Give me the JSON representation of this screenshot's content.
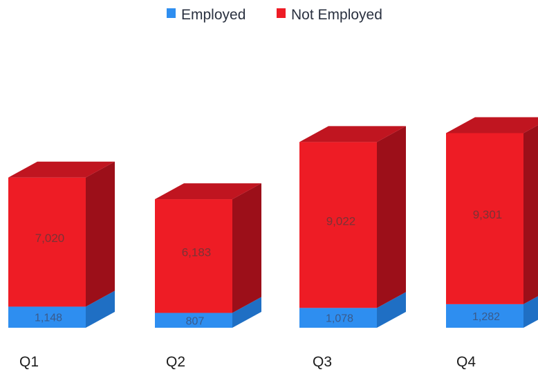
{
  "chart_data": {
    "type": "bar",
    "stacked": true,
    "three_d": true,
    "categories": [
      "Q1",
      "Q2",
      "Q3",
      "Q4"
    ],
    "series": [
      {
        "name": "Employed",
        "values": [
          1148,
          807,
          1078,
          1282
        ],
        "labels": [
          "1,148",
          "807",
          "1,078",
          "1,282"
        ],
        "color": "#2e8ef0"
      },
      {
        "name": "Not Employed",
        "values": [
          7020,
          6183,
          9022,
          9301
        ],
        "labels": [
          "7,020",
          "6,183",
          "9,022",
          "9,301"
        ],
        "color": "#ee1c25"
      }
    ],
    "legend": "top-center",
    "grid": false
  }
}
